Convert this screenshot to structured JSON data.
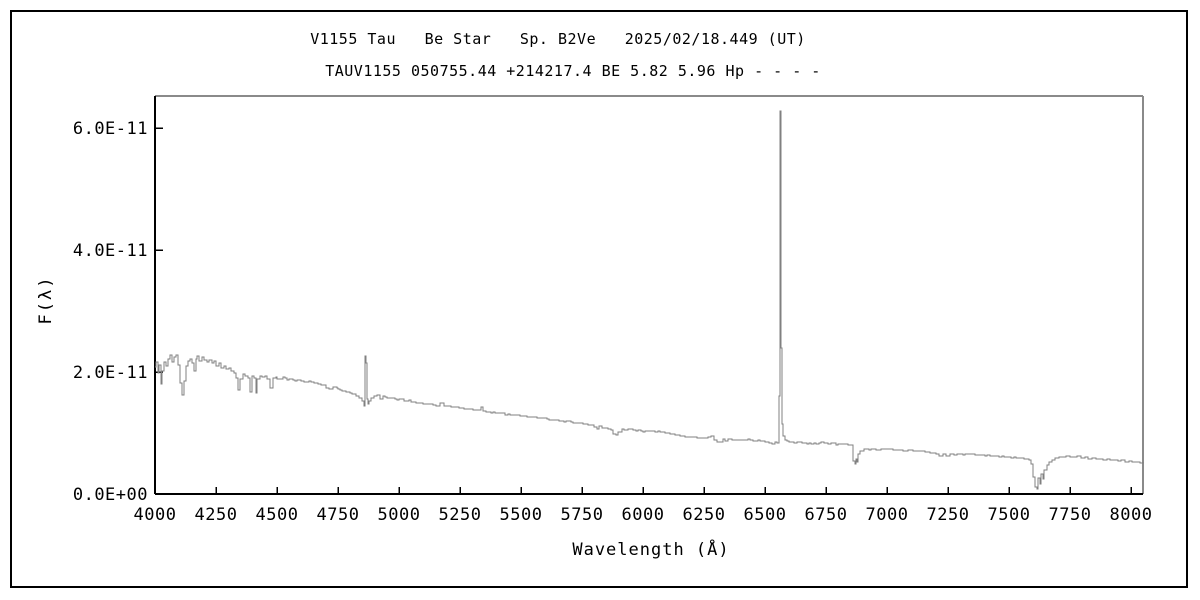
{
  "titles": {
    "line1": "V1155 Tau   Be Star   Sp. B2Ve   2025/02/18.449 (UT)",
    "line2": "TAUV1155 050755.44 +214217.4 BE 5.82 5.96 Hp - - - -"
  },
  "chart_data": {
    "type": "line",
    "title": "V1155 Tau   Be Star   Sp. B2Ve   2025/02/18.449 (UT)",
    "subtitle": "TAUV1155 050755.44 +214217.4 BE 5.82 5.96 Hp - - - -",
    "xlabel": "Wavelength (Å)",
    "ylabel": "F(λ)",
    "grid": false,
    "legend": false,
    "xlim": [
      4000,
      8049
    ],
    "ylim_flux_scaled": [
      0,
      6.525
    ],
    "flux_scale": 1e-11,
    "x_ticks": [
      4000,
      4250,
      4500,
      4750,
      5000,
      5250,
      5500,
      5750,
      6000,
      6250,
      6500,
      6750,
      7000,
      7250,
      7500,
      7750,
      8000
    ],
    "y_ticks": [
      {
        "label": "0.0E+00",
        "value": 0.0
      },
      {
        "label": "2.0E-11",
        "value": 2.0
      },
      {
        "label": "4.0E-11",
        "value": 4.0
      },
      {
        "label": "6.0E-11",
        "value": 6.0
      }
    ],
    "colors": {
      "line": "#808080",
      "axis": "#000000",
      "frame_top_right": "#8a8a8a",
      "text": "#000000",
      "background": "#ffffff"
    },
    "series": [
      {
        "name": "spectrum",
        "points": [
          [
            4000,
            2.08
          ],
          [
            4006,
            2.16
          ],
          [
            4012,
            1.98
          ],
          [
            4018,
            2.12
          ],
          [
            4024,
            1.8
          ],
          [
            4030,
            2.02
          ],
          [
            4038,
            2.16
          ],
          [
            4046,
            2.1
          ],
          [
            4054,
            2.22
          ],
          [
            4062,
            2.28
          ],
          [
            4070,
            2.16
          ],
          [
            4078,
            2.24
          ],
          [
            4086,
            2.28
          ],
          [
            4094,
            2.12
          ],
          [
            4102,
            1.82
          ],
          [
            4110,
            1.62
          ],
          [
            4118,
            1.86
          ],
          [
            4126,
            2.1
          ],
          [
            4134,
            2.18
          ],
          [
            4142,
            2.22
          ],
          [
            4150,
            2.14
          ],
          [
            4158,
            2.02
          ],
          [
            4166,
            2.22
          ],
          [
            4174,
            2.26
          ],
          [
            4182,
            2.18
          ],
          [
            4192,
            2.24
          ],
          [
            4202,
            2.2
          ],
          [
            4212,
            2.16
          ],
          [
            4222,
            2.2
          ],
          [
            4232,
            2.14
          ],
          [
            4242,
            2.18
          ],
          [
            4252,
            2.1
          ],
          [
            4262,
            2.14
          ],
          [
            4272,
            2.06
          ],
          [
            4282,
            2.1
          ],
          [
            4292,
            2.05
          ],
          [
            4302,
            2.07
          ],
          [
            4312,
            2.02
          ],
          [
            4322,
            1.99
          ],
          [
            4332,
            1.9
          ],
          [
            4340,
            1.7
          ],
          [
            4350,
            1.88
          ],
          [
            4360,
            1.97
          ],
          [
            4370,
            1.94
          ],
          [
            4380,
            1.9
          ],
          [
            4388,
            1.68
          ],
          [
            4396,
            1.93
          ],
          [
            4404,
            1.9
          ],
          [
            4412,
            1.65
          ],
          [
            4420,
            1.89
          ],
          [
            4430,
            1.94
          ],
          [
            4440,
            1.91
          ],
          [
            4450,
            1.94
          ],
          [
            4460,
            1.89
          ],
          [
            4471,
            1.73
          ],
          [
            4482,
            1.9
          ],
          [
            4494,
            1.92
          ],
          [
            4510,
            1.89
          ],
          [
            4526,
            1.91
          ],
          [
            4542,
            1.87
          ],
          [
            4558,
            1.89
          ],
          [
            4574,
            1.86
          ],
          [
            4590,
            1.87
          ],
          [
            4610,
            1.84
          ],
          [
            4630,
            1.85
          ],
          [
            4650,
            1.82
          ],
          [
            4670,
            1.8
          ],
          [
            4690,
            1.78
          ],
          [
            4713,
            1.72
          ],
          [
            4728,
            1.76
          ],
          [
            4744,
            1.73
          ],
          [
            4760,
            1.71
          ],
          [
            4776,
            1.69
          ],
          [
            4792,
            1.67
          ],
          [
            4808,
            1.64
          ],
          [
            4822,
            1.61
          ],
          [
            4836,
            1.58
          ],
          [
            4848,
            1.52
          ],
          [
            4856,
            1.45
          ],
          [
            4860,
            1.62
          ],
          [
            4862,
            2.27
          ],
          [
            4864,
            2.15
          ],
          [
            4867,
            1.55
          ],
          [
            4872,
            1.48
          ],
          [
            4878,
            1.53
          ],
          [
            4886,
            1.57
          ],
          [
            4896,
            1.6
          ],
          [
            4908,
            1.62
          ],
          [
            4922,
            1.56
          ],
          [
            4936,
            1.6
          ],
          [
            4952,
            1.58
          ],
          [
            4968,
            1.57
          ],
          [
            4984,
            1.56
          ],
          [
            5000,
            1.55
          ],
          [
            5020,
            1.53
          ],
          [
            5040,
            1.54
          ],
          [
            5060,
            1.51
          ],
          [
            5080,
            1.5
          ],
          [
            5100,
            1.48
          ],
          [
            5120,
            1.47
          ],
          [
            5140,
            1.46
          ],
          [
            5160,
            1.45
          ],
          [
            5178,
            1.5
          ],
          [
            5186,
            1.44
          ],
          [
            5205,
            1.44
          ],
          [
            5225,
            1.42
          ],
          [
            5245,
            1.41
          ],
          [
            5265,
            1.4
          ],
          [
            5285,
            1.39
          ],
          [
            5305,
            1.38
          ],
          [
            5325,
            1.37
          ],
          [
            5336,
            1.42
          ],
          [
            5344,
            1.36
          ],
          [
            5365,
            1.35
          ],
          [
            5385,
            1.34
          ],
          [
            5405,
            1.33
          ],
          [
            5425,
            1.32
          ],
          [
            5445,
            1.31
          ],
          [
            5465,
            1.3
          ],
          [
            5485,
            1.29
          ],
          [
            5505,
            1.28
          ],
          [
            5525,
            1.27
          ],
          [
            5545,
            1.26
          ],
          [
            5565,
            1.25
          ],
          [
            5585,
            1.24
          ],
          [
            5605,
            1.23
          ],
          [
            5625,
            1.22
          ],
          [
            5645,
            1.21
          ],
          [
            5665,
            1.2
          ],
          [
            5685,
            1.19
          ],
          [
            5705,
            1.18
          ],
          [
            5725,
            1.17
          ],
          [
            5745,
            1.16
          ],
          [
            5765,
            1.14
          ],
          [
            5785,
            1.13
          ],
          [
            5800,
            1.1
          ],
          [
            5810,
            1.07
          ],
          [
            5820,
            1.11
          ],
          [
            5840,
            1.09
          ],
          [
            5858,
            1.07
          ],
          [
            5876,
            0.99
          ],
          [
            5890,
            0.97
          ],
          [
            5898,
            1.02
          ],
          [
            5912,
            1.06
          ],
          [
            5930,
            1.05
          ],
          [
            5950,
            1.06
          ],
          [
            5970,
            1.04
          ],
          [
            5990,
            1.03
          ],
          [
            6010,
            1.04
          ],
          [
            6030,
            1.03
          ],
          [
            6050,
            1.02
          ],
          [
            6070,
            1.01
          ],
          [
            6090,
            1.0
          ],
          [
            6110,
            0.99
          ],
          [
            6130,
            0.97
          ],
          [
            6150,
            0.95
          ],
          [
            6170,
            0.94
          ],
          [
            6190,
            0.93
          ],
          [
            6210,
            0.93
          ],
          [
            6230,
            0.92
          ],
          [
            6250,
            0.91
          ],
          [
            6268,
            0.93
          ],
          [
            6280,
            0.95
          ],
          [
            6292,
            0.89
          ],
          [
            6304,
            0.86
          ],
          [
            6316,
            0.85
          ],
          [
            6326,
            0.9
          ],
          [
            6338,
            0.87
          ],
          [
            6350,
            0.9
          ],
          [
            6364,
            0.88
          ],
          [
            6380,
            0.89
          ],
          [
            6400,
            0.88
          ],
          [
            6420,
            0.89
          ],
          [
            6440,
            0.88
          ],
          [
            6460,
            0.87
          ],
          [
            6480,
            0.87
          ],
          [
            6500,
            0.86
          ],
          [
            6515,
            0.83
          ],
          [
            6528,
            0.82
          ],
          [
            6540,
            0.85
          ],
          [
            6550,
            0.84
          ],
          [
            6556,
            0.89
          ],
          [
            6559,
            1.6
          ],
          [
            6561,
            4.2
          ],
          [
            6563,
            6.28
          ],
          [
            6565,
            5.6
          ],
          [
            6567,
            2.4
          ],
          [
            6570,
            1.15
          ],
          [
            6574,
            0.95
          ],
          [
            6580,
            0.88
          ],
          [
            6600,
            0.85
          ],
          [
            6620,
            0.84
          ],
          [
            6640,
            0.85
          ],
          [
            6660,
            0.83
          ],
          [
            6680,
            0.84
          ],
          [
            6700,
            0.83
          ],
          [
            6720,
            0.84
          ],
          [
            6740,
            0.83
          ],
          [
            6760,
            0.82
          ],
          [
            6780,
            0.83
          ],
          [
            6800,
            0.82
          ],
          [
            6820,
            0.82
          ],
          [
            6840,
            0.81
          ],
          [
            6852,
            0.8
          ],
          [
            6862,
            0.54
          ],
          [
            6867,
            0.5
          ],
          [
            6872,
            0.58
          ],
          [
            6876,
            0.52
          ],
          [
            6882,
            0.66
          ],
          [
            6890,
            0.71
          ],
          [
            6905,
            0.73
          ],
          [
            6925,
            0.72
          ],
          [
            6945,
            0.73
          ],
          [
            6965,
            0.72
          ],
          [
            6985,
            0.73
          ],
          [
            7005,
            0.73
          ],
          [
            7025,
            0.72
          ],
          [
            7045,
            0.72
          ],
          [
            7065,
            0.71
          ],
          [
            7085,
            0.72
          ],
          [
            7105,
            0.71
          ],
          [
            7125,
            0.71
          ],
          [
            7145,
            0.7
          ],
          [
            7165,
            0.69
          ],
          [
            7185,
            0.67
          ],
          [
            7200,
            0.65
          ],
          [
            7213,
            0.63
          ],
          [
            7228,
            0.66
          ],
          [
            7243,
            0.62
          ],
          [
            7258,
            0.65
          ],
          [
            7273,
            0.64
          ],
          [
            7288,
            0.66
          ],
          [
            7303,
            0.65
          ],
          [
            7320,
            0.66
          ],
          [
            7340,
            0.65
          ],
          [
            7360,
            0.64
          ],
          [
            7380,
            0.64
          ],
          [
            7400,
            0.63
          ],
          [
            7420,
            0.62
          ],
          [
            7440,
            0.62
          ],
          [
            7460,
            0.61
          ],
          [
            7480,
            0.61
          ],
          [
            7500,
            0.6
          ],
          [
            7520,
            0.6
          ],
          [
            7540,
            0.59
          ],
          [
            7560,
            0.58
          ],
          [
            7580,
            0.56
          ],
          [
            7592,
            0.5
          ],
          [
            7600,
            0.28
          ],
          [
            7608,
            0.12
          ],
          [
            7614,
            0.08
          ],
          [
            7620,
            0.26
          ],
          [
            7626,
            0.16
          ],
          [
            7632,
            0.33
          ],
          [
            7638,
            0.24
          ],
          [
            7645,
            0.4
          ],
          [
            7654,
            0.48
          ],
          [
            7664,
            0.53
          ],
          [
            7676,
            0.56
          ],
          [
            7690,
            0.59
          ],
          [
            7705,
            0.61
          ],
          [
            7720,
            0.6
          ],
          [
            7735,
            0.63
          ],
          [
            7750,
            0.61
          ],
          [
            7765,
            0.6
          ],
          [
            7780,
            0.62
          ],
          [
            7795,
            0.59
          ],
          [
            7810,
            0.6
          ],
          [
            7825,
            0.58
          ],
          [
            7840,
            0.59
          ],
          [
            7855,
            0.57
          ],
          [
            7870,
            0.58
          ],
          [
            7885,
            0.56
          ],
          [
            7900,
            0.57
          ],
          [
            7915,
            0.55
          ],
          [
            7930,
            0.56
          ],
          [
            7945,
            0.54
          ],
          [
            7960,
            0.55
          ],
          [
            7975,
            0.53
          ],
          [
            7990,
            0.54
          ],
          [
            8005,
            0.52
          ],
          [
            8020,
            0.53
          ],
          [
            8035,
            0.51
          ],
          [
            8049,
            0.52
          ]
        ]
      }
    ]
  }
}
